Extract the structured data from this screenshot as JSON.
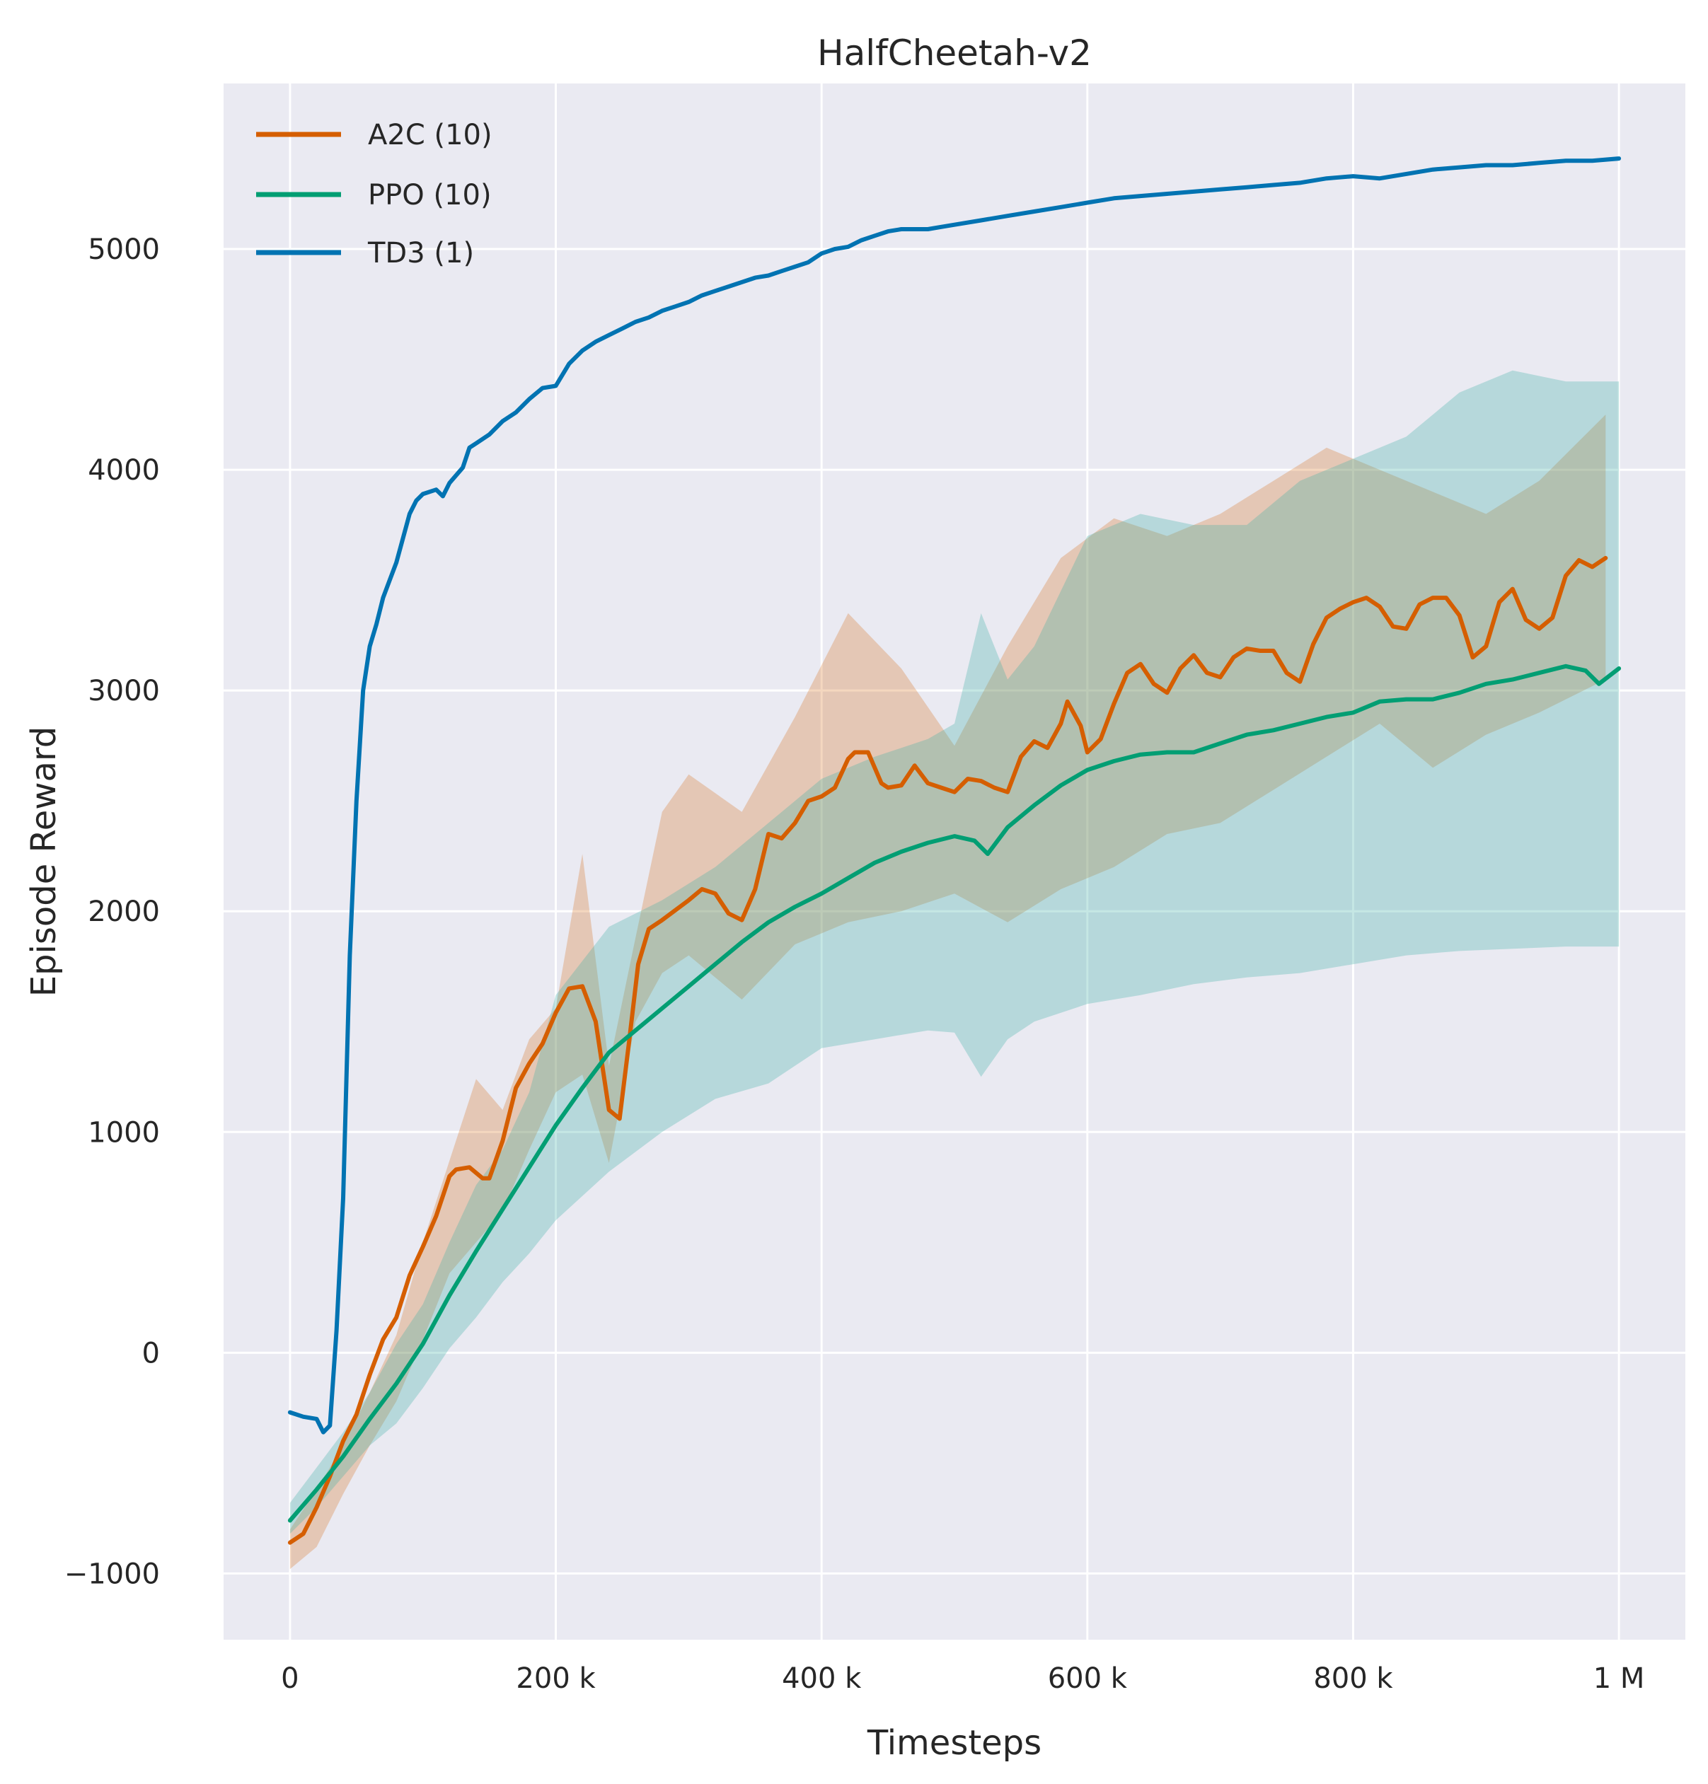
{
  "chart_data": {
    "type": "line",
    "title": "HalfCheetah-v2",
    "xlabel": "Timesteps",
    "ylabel": "Episode Reward",
    "xlim": [
      -50000,
      1050000
    ],
    "ylim": [
      -1300,
      5750
    ],
    "xticks": [
      0,
      200000,
      400000,
      600000,
      800000,
      1000000
    ],
    "xtick_labels": [
      "0",
      "200 k",
      "400 k",
      "600 k",
      "800 k",
      "1 M"
    ],
    "yticks": [
      -1000,
      0,
      1000,
      2000,
      3000,
      4000,
      5000
    ],
    "ytick_labels": [
      "−1000",
      "0",
      "1000",
      "2000",
      "3000",
      "4000",
      "5000"
    ],
    "grid": true,
    "legend_position": "top-left",
    "colors": {
      "background": "#eaeaf2",
      "a2c": "#d55e00",
      "ppo": "#029e73",
      "td3": "#0173b2",
      "a2c_band": "#d55e00",
      "ppo_band": "#40b0a6"
    },
    "series": [
      {
        "name": "A2C (10)",
        "color": "#d55e00",
        "x": [
          0,
          10000,
          20000,
          30000,
          40000,
          50000,
          60000,
          70000,
          80000,
          90000,
          100000,
          110000,
          120000,
          125000,
          135000,
          145000,
          150000,
          160000,
          170000,
          180000,
          190000,
          200000,
          210000,
          220000,
          230000,
          240000,
          248000,
          255000,
          262000,
          270000,
          280000,
          300000,
          310000,
          320000,
          330000,
          340000,
          350000,
          360000,
          370000,
          380000,
          390000,
          400000,
          410000,
          420000,
          425000,
          435000,
          445000,
          450000,
          460000,
          470000,
          480000,
          490000,
          500000,
          510000,
          520000,
          530000,
          540000,
          550000,
          560000,
          570000,
          580000,
          585000,
          595000,
          600000,
          610000,
          620000,
          630000,
          640000,
          650000,
          660000,
          670000,
          680000,
          690000,
          700000,
          710000,
          720000,
          730000,
          740000,
          750000,
          760000,
          770000,
          780000,
          790000,
          800000,
          810000,
          820000,
          830000,
          840000,
          850000,
          860000,
          870000,
          880000,
          890000,
          900000,
          910000,
          920000,
          930000,
          940000,
          950000,
          960000,
          970000,
          980000,
          990000
        ],
        "y": [
          -860,
          -820,
          -700,
          -560,
          -400,
          -280,
          -100,
          60,
          160,
          350,
          480,
          620,
          800,
          830,
          840,
          790,
          790,
          960,
          1200,
          1310,
          1400,
          1540,
          1650,
          1660,
          1500,
          1100,
          1060,
          1400,
          1760,
          1920,
          1960,
          2050,
          2100,
          2080,
          1990,
          1960,
          2100,
          2350,
          2330,
          2400,
          2500,
          2520,
          2560,
          2690,
          2720,
          2720,
          2580,
          2560,
          2570,
          2660,
          2580,
          2560,
          2540,
          2600,
          2590,
          2560,
          2540,
          2700,
          2770,
          2740,
          2850,
          2950,
          2840,
          2720,
          2780,
          2940,
          3080,
          3120,
          3030,
          2990,
          3100,
          3160,
          3080,
          3060,
          3150,
          3190,
          3180,
          3180,
          3080,
          3040,
          3210,
          3330,
          3370,
          3400,
          3420,
          3380,
          3290,
          3280,
          3390,
          3420,
          3420,
          3340,
          3150,
          3200,
          3400,
          3460,
          3320,
          3280,
          3330,
          3520,
          3590,
          3560,
          3600
        ]
      },
      {
        "name": "PPO (10)",
        "color": "#029e73",
        "x": [
          0,
          20000,
          40000,
          60000,
          80000,
          100000,
          120000,
          140000,
          160000,
          180000,
          200000,
          220000,
          240000,
          260000,
          280000,
          300000,
          320000,
          340000,
          360000,
          380000,
          400000,
          420000,
          440000,
          460000,
          480000,
          500000,
          515000,
          525000,
          540000,
          560000,
          580000,
          600000,
          620000,
          640000,
          660000,
          680000,
          700000,
          720000,
          740000,
          760000,
          780000,
          800000,
          820000,
          840000,
          860000,
          880000,
          900000,
          920000,
          940000,
          960000,
          975000,
          985000,
          1000000
        ],
        "y": [
          -760,
          -620,
          -470,
          -300,
          -140,
          40,
          260,
          460,
          650,
          840,
          1030,
          1200,
          1360,
          1460,
          1560,
          1660,
          1760,
          1860,
          1950,
          2020,
          2080,
          2150,
          2220,
          2270,
          2310,
          2340,
          2320,
          2260,
          2380,
          2480,
          2570,
          2640,
          2680,
          2710,
          2720,
          2720,
          2760,
          2800,
          2820,
          2850,
          2880,
          2900,
          2950,
          2960,
          2960,
          2990,
          3030,
          3050,
          3080,
          3110,
          3090,
          3030,
          3100
        ]
      },
      {
        "name": "TD3 (1)",
        "color": "#0173b2",
        "x": [
          0,
          10000,
          20000,
          25000,
          30000,
          35000,
          40000,
          45000,
          50000,
          55000,
          60000,
          65000,
          70000,
          75000,
          80000,
          90000,
          95000,
          100000,
          110000,
          115000,
          120000,
          130000,
          135000,
          140000,
          150000,
          160000,
          170000,
          180000,
          190000,
          200000,
          210000,
          220000,
          230000,
          240000,
          250000,
          260000,
          270000,
          280000,
          290000,
          300000,
          310000,
          320000,
          330000,
          340000,
          350000,
          360000,
          370000,
          380000,
          390000,
          400000,
          410000,
          420000,
          430000,
          440000,
          450000,
          460000,
          470000,
          480000,
          490000,
          500000,
          520000,
          540000,
          560000,
          580000,
          600000,
          620000,
          640000,
          660000,
          680000,
          700000,
          720000,
          740000,
          760000,
          780000,
          800000,
          820000,
          840000,
          860000,
          880000,
          900000,
          920000,
          940000,
          960000,
          980000,
          1000000
        ],
        "y": [
          -270,
          -290,
          -300,
          -360,
          -330,
          100,
          700,
          1800,
          2500,
          3000,
          3200,
          3300,
          3420,
          3500,
          3580,
          3800,
          3860,
          3890,
          3910,
          3880,
          3940,
          4010,
          4100,
          4120,
          4160,
          4220,
          4260,
          4320,
          4370,
          4380,
          4480,
          4540,
          4580,
          4610,
          4640,
          4670,
          4690,
          4720,
          4740,
          4760,
          4790,
          4810,
          4830,
          4850,
          4870,
          4880,
          4900,
          4920,
          4940,
          4980,
          5000,
          5010,
          5040,
          5060,
          5080,
          5090,
          5090,
          5090,
          5100,
          5110,
          5130,
          5150,
          5170,
          5190,
          5210,
          5230,
          5240,
          5250,
          5260,
          5270,
          5280,
          5290,
          5300,
          5320,
          5330,
          5320,
          5340,
          5360,
          5370,
          5380,
          5380,
          5390,
          5400,
          5400,
          5410
        ]
      }
    ],
    "bands": [
      {
        "series": "A2C (10)",
        "x": [
          0,
          20000,
          40000,
          60000,
          80000,
          100000,
          120000,
          140000,
          160000,
          180000,
          200000,
          220000,
          240000,
          260000,
          280000,
          300000,
          340000,
          380000,
          420000,
          460000,
          500000,
          540000,
          580000,
          620000,
          660000,
          700000,
          740000,
          780000,
          820000,
          860000,
          900000,
          940000,
          990000
        ],
        "upper": [
          -800,
          -620,
          -420,
          -180,
          80,
          500,
          870,
          1240,
          1100,
          1420,
          1560,
          2260,
          1300,
          1880,
          2450,
          2620,
          2450,
          2880,
          3350,
          3100,
          2750,
          3200,
          3600,
          3780,
          3700,
          3800,
          3950,
          4100,
          4000,
          3900,
          3800,
          3950,
          4250
        ],
        "lower": [
          -980,
          -880,
          -640,
          -420,
          -220,
          60,
          360,
          500,
          640,
          920,
          1180,
          1260,
          860,
          1500,
          1720,
          1800,
          1600,
          1850,
          1950,
          2000,
          2080,
          1950,
          2100,
          2200,
          2350,
          2400,
          2550,
          2700,
          2850,
          2650,
          2800,
          2900,
          3050
        ]
      },
      {
        "series": "PPO (10)",
        "x": [
          0,
          20000,
          40000,
          60000,
          80000,
          100000,
          120000,
          140000,
          160000,
          180000,
          200000,
          240000,
          280000,
          320000,
          360000,
          400000,
          440000,
          480000,
          500000,
          520000,
          540000,
          560000,
          600000,
          640000,
          680000,
          720000,
          760000,
          800000,
          840000,
          880000,
          920000,
          960000,
          1000000
        ],
        "upper": [
          -680,
          -520,
          -360,
          -180,
          40,
          220,
          500,
          760,
          920,
          1180,
          1620,
          1930,
          2050,
          2200,
          2400,
          2600,
          2700,
          2780,
          2850,
          3350,
          3050,
          3200,
          3700,
          3800,
          3750,
          3750,
          3950,
          4050,
          4150,
          4350,
          4450,
          4400,
          4400
        ],
        "lower": [
          -820,
          -700,
          -560,
          -420,
          -320,
          -160,
          20,
          160,
          320,
          450,
          600,
          820,
          1000,
          1150,
          1220,
          1380,
          1420,
          1460,
          1450,
          1250,
          1420,
          1500,
          1580,
          1620,
          1670,
          1700,
          1720,
          1760,
          1800,
          1820,
          1830,
          1840,
          1840
        ]
      }
    ]
  }
}
